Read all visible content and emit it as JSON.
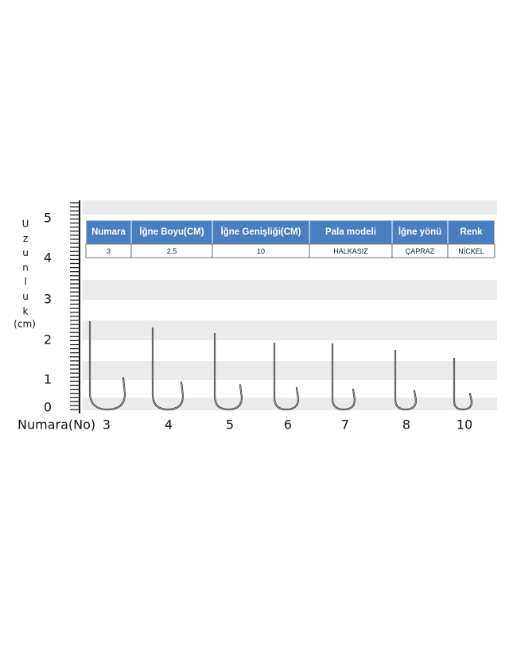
{
  "ruler": {
    "letters": [
      "U",
      "z",
      "u",
      "n",
      "l",
      "u",
      "k"
    ],
    "unit": "(cm)",
    "ticks": [
      "5",
      "4",
      "3",
      "2",
      "1",
      "0"
    ]
  },
  "table": {
    "headers": [
      "Numara",
      "İğne Boyu(CM)",
      "İğne Genişliği(CM)",
      "Pala modeli",
      "İğne yönü",
      "Renk"
    ],
    "rows": [
      [
        "3",
        "2,5",
        "10",
        "HALKASIZ",
        "ÇAPRAZ",
        "NİCKEL"
      ]
    ]
  },
  "sizes": {
    "label": "Numara(No)",
    "numbers": [
      "3",
      "4",
      "5",
      "6",
      "7",
      "8",
      "10"
    ]
  }
}
